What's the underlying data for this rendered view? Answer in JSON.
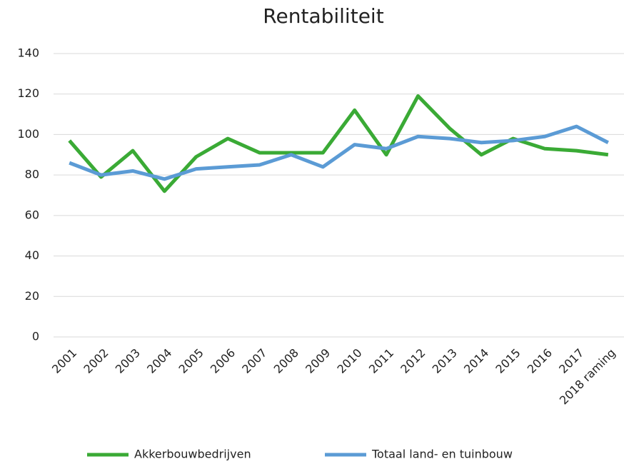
{
  "chart_data": {
    "type": "line",
    "title": "Rentabiliteit",
    "categories": [
      "2001",
      "2002",
      "2003",
      "2004",
      "2005",
      "2006",
      "2007",
      "2008",
      "2009",
      "2010",
      "2011",
      "2012",
      "2013",
      "2014",
      "2015",
      "2016",
      "2017",
      "2018 raming"
    ],
    "series": [
      {
        "name": "Akkerbouwbedrijven",
        "color": "#3aaa35",
        "values": [
          97,
          79,
          92,
          72,
          89,
          98,
          91,
          91,
          91,
          112,
          90,
          119,
          103,
          90,
          98,
          93,
          92,
          90
        ]
      },
      {
        "name": "Totaal land- en tuinbouw",
        "color": "#5b9bd5",
        "values": [
          86,
          80,
          82,
          78,
          83,
          84,
          85,
          90,
          84,
          95,
          93,
          99,
          98,
          96,
          97,
          99,
          104,
          96
        ]
      }
    ],
    "ylim": [
      0,
      140
    ],
    "yticks": [
      0,
      20,
      40,
      60,
      80,
      100,
      120,
      140
    ],
    "grid": true,
    "legend": "bottom"
  }
}
